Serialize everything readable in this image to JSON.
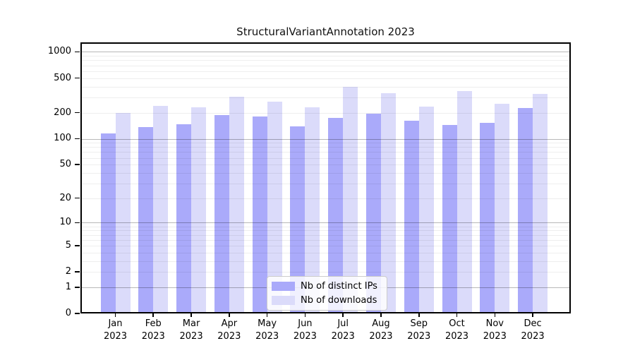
{
  "chart_data": {
    "type": "bar",
    "title": "StructuralVariantAnnotation 2023",
    "categories": [
      "Jan",
      "Feb",
      "Mar",
      "Apr",
      "May",
      "Jun",
      "Jul",
      "Aug",
      "Sep",
      "Oct",
      "Nov",
      "Dec"
    ],
    "x_year": "2023",
    "xlabel": "",
    "ylabel": "",
    "yscale": "log1p",
    "ylim": [
      0,
      1285
    ],
    "y_ticks": [
      0,
      1,
      2,
      5,
      10,
      20,
      50,
      100,
      200,
      500,
      1000
    ],
    "y_major_gridlines": [
      1,
      10,
      100,
      1000
    ],
    "grid": true,
    "legend_position": "bottom-center-inside",
    "series": [
      {
        "name": "Nb of distinct IPs",
        "color": "#aaaafa",
        "values": [
          114,
          137,
          148,
          187,
          180,
          140,
          173,
          196,
          160,
          144,
          153,
          228
        ]
      },
      {
        "name": "Nb of downloads",
        "color": "#dbdbfa",
        "values": [
          197,
          240,
          232,
          307,
          268,
          231,
          400,
          337,
          235,
          354,
          255,
          328
        ]
      }
    ]
  }
}
